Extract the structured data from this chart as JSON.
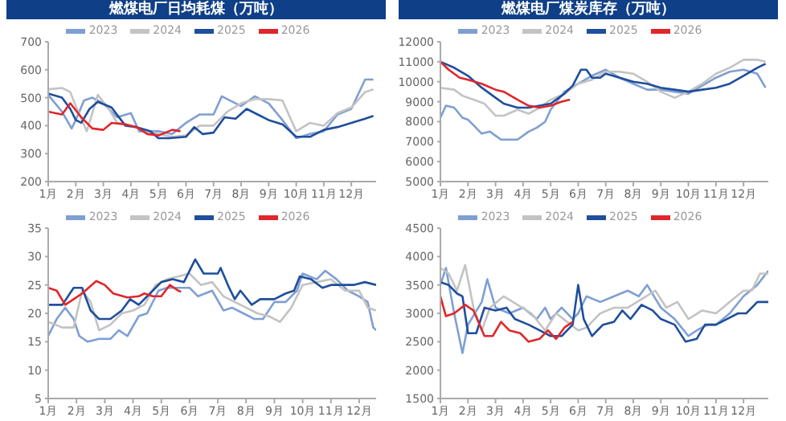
{
  "chart_data": [
    {
      "type": "line",
      "title": "燃煤电厂日均耗煤（万吨）",
      "legend": "top",
      "marker": "none",
      "line_style": "solid",
      "xlim": [
        1,
        12.9
      ],
      "xticks": [
        {
          "value": 1,
          "label": "1月"
        },
        {
          "value": 2,
          "label": "2月"
        },
        {
          "value": 3,
          "label": "3月"
        },
        {
          "value": 4,
          "label": "4月"
        },
        {
          "value": 5,
          "label": "5月"
        },
        {
          "value": 6,
          "label": "6月"
        },
        {
          "value": 7,
          "label": "7月"
        },
        {
          "value": 8,
          "label": "8月"
        },
        {
          "value": 9,
          "label": "9月"
        },
        {
          "value": 10,
          "label": "10月"
        },
        {
          "value": 11,
          "label": "11月"
        },
        {
          "value": 12,
          "label": "12月"
        }
      ],
      "ylim": [
        200,
        700
      ],
      "yticks": [
        200,
        300,
        400,
        500,
        600,
        700
      ],
      "series": [
        {
          "name": "2023",
          "color": "#7f9fd3",
          "x": [
            1,
            1.5,
            1.85,
            2,
            2.3,
            2.6,
            3,
            3.5,
            4,
            4.3,
            5,
            5.5,
            6,
            6.5,
            7,
            7.3,
            7.6,
            8,
            8.5,
            9,
            9.5,
            10,
            10.5,
            11,
            11.5,
            12,
            12.5,
            12.8
          ],
          "values": [
            510,
            450,
            390,
            420,
            490,
            500,
            480,
            430,
            445,
            380,
            380,
            370,
            410,
            440,
            440,
            505,
            490,
            470,
            505,
            480,
            420,
            355,
            370,
            380,
            440,
            460,
            565,
            565
          ]
        },
        {
          "name": "2024",
          "color": "#c3c3c3",
          "x": [
            1,
            1.5,
            1.8,
            2,
            2.4,
            2.8,
            3.2,
            3.5,
            4,
            4.5,
            5,
            5.5,
            6,
            6.5,
            7,
            7.5,
            8,
            8.5,
            9,
            9.5,
            10,
            10.5,
            11,
            11.5,
            12,
            12.5,
            12.8
          ],
          "values": [
            530,
            535,
            520,
            470,
            380,
            510,
            460,
            410,
            400,
            380,
            370,
            360,
            365,
            400,
            400,
            450,
            480,
            495,
            495,
            490,
            380,
            410,
            400,
            445,
            465,
            520,
            530
          ]
        },
        {
          "name": "2025",
          "color": "#1f4e9c",
          "x": [
            1,
            1.5,
            1.8,
            2,
            2.2,
            2.5,
            2.8,
            3.3,
            3.8,
            4.2,
            4.7,
            5,
            5.4,
            6,
            6.3,
            6.6,
            7,
            7.4,
            7.8,
            8.2,
            8.6,
            9,
            9.5,
            10,
            10.5,
            11,
            11.5,
            12,
            12.5,
            12.8
          ],
          "values": [
            515,
            500,
            460,
            420,
            410,
            460,
            485,
            465,
            400,
            395,
            380,
            355,
            355,
            360,
            395,
            370,
            375,
            430,
            425,
            460,
            440,
            420,
            405,
            360,
            360,
            385,
            395,
            410,
            425,
            435
          ]
        },
        {
          "name": "2026",
          "color": "#e0262b",
          "x": [
            1,
            1.5,
            1.8,
            2.2,
            2.6,
            3,
            3.3,
            3.8,
            4.2,
            4.6,
            5,
            5.5,
            5.8
          ],
          "values": [
            450,
            440,
            480,
            430,
            390,
            385,
            410,
            405,
            395,
            370,
            365,
            385,
            380
          ]
        }
      ]
    },
    {
      "type": "line",
      "title": "燃煤电厂煤炭库存（万吨）",
      "legend": "top",
      "marker": "none",
      "line_style": "solid",
      "xlim": [
        1,
        12.9
      ],
      "xticks": [
        {
          "value": 1,
          "label": "1月"
        },
        {
          "value": 2,
          "label": "2月"
        },
        {
          "value": 3,
          "label": "3月"
        },
        {
          "value": 4,
          "label": "4月"
        },
        {
          "value": 5,
          "label": "5月"
        },
        {
          "value": 6,
          "label": "6月"
        },
        {
          "value": 7,
          "label": "7月"
        },
        {
          "value": 8,
          "label": "8月"
        },
        {
          "value": 9,
          "label": "9月"
        },
        {
          "value": 10,
          "label": "10月"
        },
        {
          "value": 11,
          "label": "11月"
        },
        {
          "value": 12,
          "label": "12月"
        }
      ],
      "ylim": [
        5000,
        12000
      ],
      "yticks": [
        5000,
        6000,
        7000,
        8000,
        9000,
        10000,
        11000,
        12000
      ],
      "series": [
        {
          "name": "2023",
          "color": "#7f9fd3",
          "x": [
            1,
            1.2,
            1.5,
            1.8,
            2,
            2.5,
            2.8,
            3,
            3.2,
            3.8,
            4.2,
            4.5,
            4.8,
            5,
            5.5,
            6,
            6.5,
            7,
            7.5,
            8,
            8.5,
            9,
            9.5,
            10,
            10.5,
            11,
            11.5,
            12,
            12.5,
            12.8
          ],
          "values": [
            8200,
            8800,
            8700,
            8200,
            8100,
            7400,
            7500,
            7300,
            7100,
            7100,
            7500,
            7700,
            8000,
            8600,
            9500,
            9900,
            10300,
            10600,
            10200,
            9900,
            9600,
            9600,
            9500,
            9400,
            9800,
            10200,
            10500,
            10600,
            10400,
            9700
          ]
        },
        {
          "name": "2024",
          "color": "#c3c3c3",
          "x": [
            1,
            1.5,
            1.8,
            2.2,
            2.6,
            3,
            3.3,
            3.8,
            4.2,
            4.6,
            5,
            5.5,
            6,
            6.5,
            7,
            7.5,
            8,
            8.5,
            9,
            9.5,
            10,
            10.5,
            11,
            11.5,
            12,
            12.5,
            12.8
          ],
          "values": [
            9700,
            9600,
            9300,
            9100,
            8900,
            8300,
            8300,
            8600,
            8400,
            8700,
            9100,
            9400,
            9900,
            10100,
            10500,
            10500,
            10400,
            10000,
            9500,
            9200,
            9500,
            9900,
            10400,
            10700,
            11100,
            11100,
            11000
          ]
        },
        {
          "name": "2025",
          "color": "#1f4e9c",
          "x": [
            1,
            1.5,
            2,
            2.5,
            3,
            3.3,
            3.8,
            4.2,
            4.6,
            5,
            5.5,
            5.8,
            6.1,
            6.3,
            6.5,
            6.8,
            7,
            7.5,
            8,
            8.5,
            9,
            9.5,
            10,
            10.5,
            11,
            11.5,
            12,
            12.5,
            12.8
          ],
          "values": [
            11000,
            10700,
            10300,
            9700,
            9200,
            8900,
            8700,
            8700,
            8800,
            8900,
            9400,
            9800,
            10600,
            10600,
            10200,
            10200,
            10400,
            10200,
            10000,
            9900,
            9700,
            9600,
            9500,
            9600,
            9700,
            9900,
            10300,
            10700,
            10900
          ]
        },
        {
          "name": "2026",
          "color": "#e0262b",
          "x": [
            1,
            1.3,
            1.7,
            2,
            2.5,
            3,
            3.3,
            3.8,
            4.2,
            4.6,
            5,
            5.4,
            5.7
          ],
          "values": [
            11000,
            10600,
            10200,
            10100,
            9900,
            9600,
            9500,
            9100,
            8800,
            8700,
            8800,
            9000,
            9100
          ]
        }
      ]
    },
    {
      "type": "line",
      "legend": "top",
      "marker": "none",
      "line_style": "solid",
      "xlim": [
        1,
        12.6
      ],
      "xticks": [
        {
          "value": 1,
          "label": "1月"
        },
        {
          "value": 2,
          "label": "2月"
        },
        {
          "value": 3,
          "label": "3月"
        },
        {
          "value": 4,
          "label": "4月"
        },
        {
          "value": 5,
          "label": "5月"
        },
        {
          "value": 6,
          "label": "6月"
        },
        {
          "value": 7,
          "label": "7月"
        },
        {
          "value": 8,
          "label": "8月"
        },
        {
          "value": 9,
          "label": "9月"
        },
        {
          "value": 10,
          "label": "10月"
        },
        {
          "value": 11,
          "label": "11月"
        },
        {
          "value": 12,
          "label": "12月"
        }
      ],
      "ylim": [
        5,
        35
      ],
      "yticks": [
        5,
        10,
        15,
        20,
        25,
        30,
        35
      ],
      "series": [
        {
          "name": "2023",
          "color": "#7f9fd3",
          "x": [
            1,
            1.3,
            1.6,
            1.9,
            2.1,
            2.4,
            2.8,
            3.2,
            3.5,
            3.8,
            4.2,
            4.5,
            4.9,
            5.2,
            5.6,
            6,
            6.3,
            6.8,
            7.2,
            7.5,
            7.9,
            8.3,
            8.6,
            9,
            9.4,
            9.8,
            10,
            10.5,
            10.8,
            11.2,
            11.6,
            12,
            12.3,
            12.5,
            12.6
          ],
          "values": [
            16,
            19,
            21,
            19,
            16,
            15,
            15.5,
            15.5,
            17,
            16,
            19.5,
            20,
            24,
            24.5,
            24.5,
            24.5,
            23,
            24,
            20.5,
            21,
            20,
            19,
            19,
            22,
            22,
            24,
            27,
            26,
            27.5,
            26,
            24,
            23,
            22,
            17.5,
            17
          ]
        },
        {
          "name": "2024",
          "color": "#c3c3c3",
          "x": [
            1,
            1.5,
            1.9,
            2.2,
            2.5,
            2.8,
            3.2,
            3.6,
            4,
            4.4,
            4.8,
            5.2,
            5.6,
            6,
            6.4,
            6.8,
            7.2,
            7.6,
            8,
            8.4,
            8.8,
            9.2,
            9.6,
            10,
            10.5,
            11,
            11.5,
            12,
            12.3,
            12.6
          ],
          "values": [
            18.5,
            17.5,
            17.5,
            24,
            22,
            17,
            18,
            20,
            20.5,
            21.5,
            25,
            26,
            26.5,
            27,
            25,
            25.5,
            23,
            22,
            21,
            20,
            19.5,
            18.5,
            21,
            25,
            25.5,
            26,
            24,
            24,
            21,
            20.5
          ]
        },
        {
          "name": "2025",
          "color": "#1f4e9c",
          "x": [
            1,
            1.5,
            1.9,
            2.2,
            2.5,
            2.8,
            3.2,
            3.6,
            3.9,
            4.2,
            4.6,
            5,
            5.4,
            5.8,
            6.2,
            6.5,
            7,
            7.1,
            7.4,
            7.6,
            7.8,
            8.2,
            8.5,
            9,
            9.4,
            9.7,
            9.9,
            10.3,
            10.7,
            11,
            11.4,
            11.8,
            12.2,
            12.6
          ],
          "values": [
            21.5,
            21.5,
            24.5,
            24.5,
            20.5,
            19,
            19,
            20.5,
            22.5,
            21.5,
            23.5,
            25.5,
            26,
            25.5,
            29.5,
            27,
            27,
            28,
            24.5,
            22.5,
            24,
            21.5,
            22.5,
            22.5,
            23.5,
            24,
            26.5,
            26,
            24.5,
            25,
            25,
            25,
            25.5,
            25
          ]
        },
        {
          "name": "2026",
          "color": "#e0262b",
          "x": [
            1,
            1.3,
            1.6,
            1.9,
            2.2,
            2.7,
            3,
            3.3,
            3.8,
            4.2,
            4.4,
            4.7,
            5,
            5.3,
            5.6,
            5.7
          ],
          "values": [
            24.5,
            24,
            21.5,
            22.5,
            23.5,
            25.7,
            25,
            23.5,
            22.8,
            23,
            23.5,
            23,
            23,
            25,
            24,
            23.8
          ]
        }
      ]
    },
    {
      "type": "line",
      "legend": "top",
      "marker": "none",
      "line_style": "solid",
      "xlim": [
        1,
        12.9
      ],
      "xticks": [
        {
          "value": 1,
          "label": "1月"
        },
        {
          "value": 2,
          "label": "2月"
        },
        {
          "value": 3,
          "label": "3月"
        },
        {
          "value": 4,
          "label": "4月"
        },
        {
          "value": 5,
          "label": "5月"
        },
        {
          "value": 6,
          "label": "6月"
        },
        {
          "value": 7,
          "label": "7月"
        },
        {
          "value": 8,
          "label": "8月"
        },
        {
          "value": 9,
          "label": "9月"
        },
        {
          "value": 10,
          "label": "10月"
        },
        {
          "value": 11,
          "label": "11月"
        },
        {
          "value": 12,
          "label": "12月"
        }
      ],
      "ylim": [
        1500,
        4500
      ],
      "yticks": [
        1500,
        2000,
        2500,
        3000,
        3500,
        4000,
        4500
      ],
      "series": [
        {
          "name": "2023",
          "color": "#7f9fd3",
          "x": [
            1,
            1.2,
            1.5,
            1.8,
            2,
            2.5,
            2.7,
            3,
            3.5,
            4,
            4.5,
            4.8,
            5,
            5.4,
            5.8,
            6,
            6.3,
            6.8,
            7.3,
            7.8,
            8.2,
            8.5,
            9,
            9.5,
            10,
            10.3,
            10.7,
            11,
            11.5,
            12,
            12.5,
            12.9
          ],
          "values": [
            3500,
            3800,
            3000,
            2300,
            2800,
            3200,
            3600,
            3100,
            3000,
            3100,
            2900,
            3100,
            2900,
            3100,
            2900,
            3000,
            3300,
            3200,
            3300,
            3400,
            3300,
            3500,
            3100,
            2900,
            2600,
            2700,
            2800,
            2800,
            3000,
            3300,
            3500,
            3750
          ]
        },
        {
          "name": "2024",
          "color": "#c3c3c3",
          "x": [
            1,
            1.3,
            1.6,
            1.9,
            2.2,
            2.5,
            2.8,
            3.3,
            3.8,
            4.3,
            4.8,
            5.2,
            5.6,
            6,
            6.3,
            6.8,
            7.3,
            7.8,
            8.3,
            8.8,
            9.2,
            9.6,
            10,
            10.5,
            11,
            11.5,
            12,
            12.3,
            12.6,
            12.9
          ],
          "values": [
            3800,
            3700,
            3400,
            3850,
            3100,
            2700,
            3100,
            3300,
            3150,
            3000,
            2700,
            3000,
            2850,
            2700,
            2750,
            3000,
            3100,
            3100,
            3250,
            3400,
            3100,
            3200,
            2900,
            3050,
            3000,
            3200,
            3400,
            3400,
            3700,
            3700
          ]
        },
        {
          "name": "2025",
          "color": "#1f4e9c",
          "x": [
            1,
            1.3,
            1.6,
            1.8,
            2,
            2.3,
            2.6,
            3,
            3.4,
            3.7,
            4.2,
            4.6,
            5,
            5.4,
            5.8,
            6,
            6.2,
            6.5,
            6.9,
            7.3,
            7.6,
            7.9,
            8.3,
            8.7,
            9,
            9.5,
            9.9,
            10.3,
            10.6,
            11,
            11.4,
            11.8,
            12.1,
            12.5,
            12.9
          ],
          "values": [
            3550,
            3500,
            3350,
            3300,
            2650,
            2650,
            3100,
            3050,
            3100,
            2900,
            2800,
            2700,
            2600,
            2600,
            2800,
            3500,
            2900,
            2600,
            2800,
            2850,
            3050,
            2900,
            3150,
            3050,
            2900,
            2800,
            2500,
            2550,
            2800,
            2800,
            2900,
            3000,
            3000,
            3200,
            3200
          ]
        },
        {
          "name": "2026",
          "color": "#e0262b",
          "x": [
            1,
            1.2,
            1.5,
            1.9,
            2.2,
            2.6,
            2.9,
            3.2,
            3.5,
            3.9,
            4.2,
            4.6,
            4.9,
            5.2,
            5.5,
            5.8
          ],
          "values": [
            3300,
            2950,
            3000,
            3150,
            3050,
            2600,
            2600,
            2850,
            2700,
            2650,
            2500,
            2550,
            2700,
            2550,
            2750,
            2850
          ]
        }
      ]
    }
  ]
}
